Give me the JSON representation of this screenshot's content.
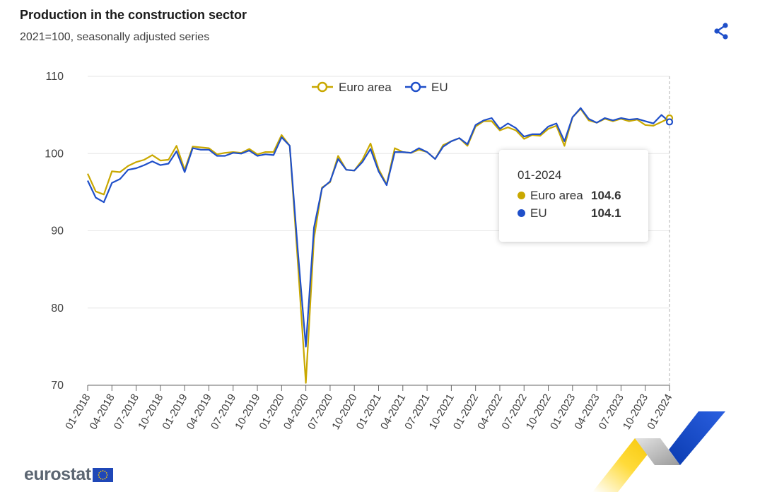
{
  "header": {
    "title": "Production in the construction sector",
    "subtitle": "2021=100, seasonally adjusted series",
    "share_icon": "share-icon"
  },
  "colors": {
    "euro_area": "#c9a800",
    "eu": "#1f4fc9",
    "grid": "#e6e6e6",
    "axis": "#666666",
    "brand_yellow": "#ffcc00",
    "brand_blue": "#0e47cb"
  },
  "tooltip": {
    "date": "01-2024",
    "rows": [
      {
        "name": "Euro area",
        "value": "104.6"
      },
      {
        "name": "EU",
        "value": "104.1"
      }
    ]
  },
  "footer": {
    "logo_text": "eurostat",
    "flag_icon": "eu-flag-icon"
  },
  "chart_data": {
    "type": "line",
    "title": "Production in the construction sector",
    "subtitle": "2021=100, seasonally adjusted series",
    "x": [
      "01-2018",
      "02-2018",
      "03-2018",
      "04-2018",
      "05-2018",
      "06-2018",
      "07-2018",
      "08-2018",
      "09-2018",
      "10-2018",
      "11-2018",
      "12-2018",
      "01-2019",
      "02-2019",
      "03-2019",
      "04-2019",
      "05-2019",
      "06-2019",
      "07-2019",
      "08-2019",
      "09-2019",
      "10-2019",
      "11-2019",
      "12-2019",
      "01-2020",
      "02-2020",
      "03-2020",
      "04-2020",
      "05-2020",
      "06-2020",
      "07-2020",
      "08-2020",
      "09-2020",
      "10-2020",
      "11-2020",
      "12-2020",
      "01-2021",
      "02-2021",
      "03-2021",
      "04-2021",
      "05-2021",
      "06-2021",
      "07-2021",
      "08-2021",
      "09-2021",
      "10-2021",
      "11-2021",
      "12-2021",
      "01-2022",
      "02-2022",
      "03-2022",
      "04-2022",
      "05-2022",
      "06-2022",
      "07-2022",
      "08-2022",
      "09-2022",
      "10-2022",
      "11-2022",
      "12-2022",
      "01-2023",
      "02-2023",
      "03-2023",
      "04-2023",
      "05-2023",
      "06-2023",
      "07-2023",
      "08-2023",
      "09-2023",
      "10-2023",
      "11-2023",
      "12-2023",
      "01-2024"
    ],
    "x_tick_labels": [
      "01-2018",
      "04-2018",
      "07-2018",
      "10-2018",
      "01-2019",
      "04-2019",
      "07-2019",
      "10-2019",
      "01-2020",
      "04-2020",
      "07-2020",
      "10-2020",
      "01-2021",
      "04-2021",
      "07-2021",
      "10-2021",
      "01-2022",
      "04-2022",
      "07-2022",
      "10-2022",
      "01-2023",
      "04-2023",
      "07-2023",
      "10-2023",
      "01-2024"
    ],
    "y_ticks": [
      70,
      80,
      90,
      100,
      110
    ],
    "ylim": [
      70,
      110
    ],
    "grid": true,
    "legend": "top-center",
    "series": [
      {
        "name": "Euro area",
        "color": "#c9a800",
        "values": [
          97.4,
          95.1,
          94.7,
          97.7,
          97.6,
          98.4,
          98.9,
          99.2,
          99.8,
          99.1,
          99.2,
          101.0,
          97.9,
          100.9,
          100.8,
          100.7,
          99.9,
          100.1,
          100.2,
          100.1,
          100.6,
          99.9,
          100.2,
          100.2,
          102.4,
          101.0,
          86.0,
          70.3,
          89.0,
          95.6,
          96.3,
          99.7,
          97.9,
          97.8,
          99.2,
          101.3,
          98.0,
          96.0,
          100.7,
          100.2,
          100.1,
          100.5,
          100.2,
          99.3,
          101.1,
          101.6,
          102.0,
          101.0,
          103.5,
          104.2,
          104.2,
          103.0,
          103.4,
          103.0,
          101.9,
          102.4,
          102.3,
          103.2,
          103.6,
          101.0,
          104.7,
          105.8,
          104.3,
          104.0,
          104.5,
          104.2,
          104.5,
          104.2,
          104.4,
          103.7,
          103.6,
          104.1,
          104.6
        ]
      },
      {
        "name": "EU",
        "color": "#1f4fc9",
        "values": [
          96.5,
          94.3,
          93.7,
          96.2,
          96.7,
          97.9,
          98.1,
          98.5,
          99.0,
          98.5,
          98.7,
          100.3,
          97.6,
          100.7,
          100.5,
          100.5,
          99.7,
          99.7,
          100.1,
          100.0,
          100.4,
          99.7,
          99.9,
          99.8,
          102.1,
          101.0,
          87.5,
          75.0,
          90.4,
          95.5,
          96.4,
          99.3,
          97.9,
          97.8,
          98.9,
          100.6,
          97.7,
          95.9,
          100.2,
          100.2,
          100.1,
          100.7,
          100.2,
          99.3,
          100.9,
          101.6,
          102.0,
          101.2,
          103.7,
          104.3,
          104.6,
          103.2,
          103.9,
          103.3,
          102.2,
          102.5,
          102.5,
          103.5,
          103.9,
          101.6,
          104.7,
          105.9,
          104.5,
          104.0,
          104.6,
          104.3,
          104.6,
          104.4,
          104.5,
          104.2,
          103.9,
          105.0,
          104.1
        ]
      }
    ]
  }
}
